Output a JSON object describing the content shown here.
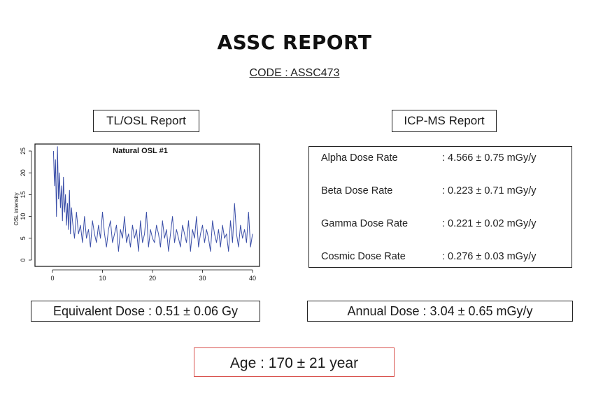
{
  "report": {
    "title": "ASSC REPORT",
    "code": "CODE : ASSC473"
  },
  "sections": {
    "tlosl_label": "TL/OSL Report",
    "icpms_label": "ICP-MS Report"
  },
  "icpms": {
    "rows": [
      {
        "name": "Alpha Dose Rate",
        "value": ": 4.566 ± 0.75 mGy/y"
      },
      {
        "name": "Beta Dose Rate",
        "value": ": 0.223 ± 0.71 mGy/y"
      },
      {
        "name": "Gamma Dose Rate",
        "value": ": 0.221 ± 0.02 mGy/y"
      },
      {
        "name": "Cosmic Dose Rate",
        "value": ": 0.276 ± 0.03 mGy/y"
      }
    ]
  },
  "results": {
    "equivalent_dose": "Equivalent Dose : 0.51 ± 0.06 Gy",
    "annual_dose": "Annual Dose : 3.04 ± 0.65 mGy/y",
    "age": "Age : 170 ± 21 year"
  },
  "colors": {
    "series": "#3b4fa8",
    "age_border": "#d9534f"
  },
  "chart_data": {
    "type": "line",
    "title": "Natural OSL #1",
    "xlabel": "",
    "ylabel": "OSL intensity",
    "xlim": [
      0,
      40
    ],
    "ylim": [
      0,
      26
    ],
    "xticks": [
      0,
      10,
      20,
      30,
      40
    ],
    "yticks": [
      0,
      5,
      10,
      15,
      20,
      25
    ],
    "x": [
      0.2,
      0.4,
      0.6,
      0.8,
      1.0,
      1.2,
      1.4,
      1.6,
      1.8,
      2.0,
      2.2,
      2.4,
      2.6,
      2.8,
      3.0,
      3.2,
      3.4,
      3.6,
      3.8,
      4.0,
      4.4,
      4.8,
      5.2,
      5.6,
      6.0,
      6.4,
      6.8,
      7.2,
      7.6,
      8.0,
      8.4,
      8.8,
      9.2,
      9.6,
      10.0,
      10.4,
      10.8,
      11.2,
      11.6,
      12.0,
      12.4,
      12.8,
      13.2,
      13.6,
      14.0,
      14.4,
      14.8,
      15.2,
      15.6,
      16.0,
      16.4,
      16.8,
      17.2,
      17.6,
      18.0,
      18.4,
      18.8,
      19.2,
      19.6,
      20.0,
      20.4,
      20.8,
      21.2,
      21.6,
      22.0,
      22.4,
      22.8,
      23.2,
      23.6,
      24.0,
      24.4,
      24.8,
      25.2,
      25.6,
      26.0,
      26.4,
      26.8,
      27.2,
      27.6,
      28.0,
      28.4,
      28.8,
      29.2,
      29.6,
      30.0,
      30.4,
      30.8,
      31.2,
      31.6,
      32.0,
      32.4,
      32.8,
      33.2,
      33.6,
      34.0,
      34.4,
      34.8,
      35.2,
      35.6,
      36.0,
      36.4,
      36.8,
      37.2,
      37.6,
      38.0,
      38.4,
      38.8,
      39.2,
      39.6,
      40.0
    ],
    "y": [
      25,
      17,
      23,
      10,
      26,
      14,
      20,
      12,
      17,
      9,
      19,
      11,
      15,
      8,
      13,
      7,
      16,
      6,
      12,
      9,
      5,
      11,
      6,
      8,
      4,
      10,
      5,
      7,
      3,
      9,
      6,
      4,
      8,
      5,
      11,
      6,
      3,
      7,
      9,
      4,
      6,
      8,
      2,
      7,
      5,
      10,
      4,
      6,
      3,
      8,
      5,
      7,
      2,
      9,
      4,
      6,
      11,
      3,
      7,
      5,
      4,
      8,
      6,
      3,
      9,
      5,
      7,
      2,
      6,
      10,
      4,
      7,
      5,
      3,
      8,
      6,
      4,
      9,
      2,
      7,
      5,
      10,
      3,
      6,
      8,
      4,
      7,
      5,
      2,
      9,
      6,
      4,
      7,
      3,
      8,
      5,
      6,
      2,
      9,
      4,
      13,
      6,
      3,
      8,
      5,
      7,
      4,
      11,
      3,
      6
    ]
  }
}
